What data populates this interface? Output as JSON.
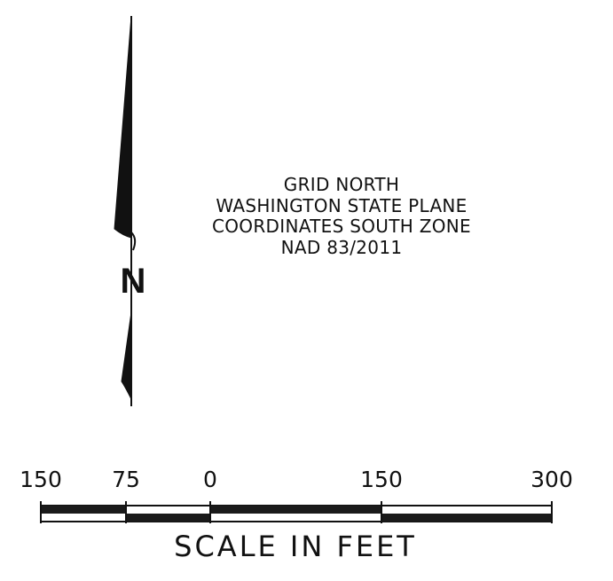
{
  "north_arrow": {
    "letter": "N",
    "icon": "north-arrow-icon"
  },
  "grid_note": {
    "lines": [
      "GRID NORTH",
      "WASHINGTON STATE PLANE",
      "COORDINATES SOUTH ZONE",
      "NAD 83/2011"
    ]
  },
  "scale_bar": {
    "ticks": [
      {
        "value": -150,
        "label": "150"
      },
      {
        "value": -75,
        "label": "75"
      },
      {
        "value": 0,
        "label": "0"
      },
      {
        "value": 150,
        "label": "150"
      },
      {
        "value": 300,
        "label": "300"
      }
    ],
    "range": [
      -150,
      300
    ],
    "caption": "SCALE IN FEET",
    "units": "feet",
    "colors": {
      "ink": "#111111",
      "fill": "#1a1a1a",
      "background": "#ffffff"
    }
  }
}
